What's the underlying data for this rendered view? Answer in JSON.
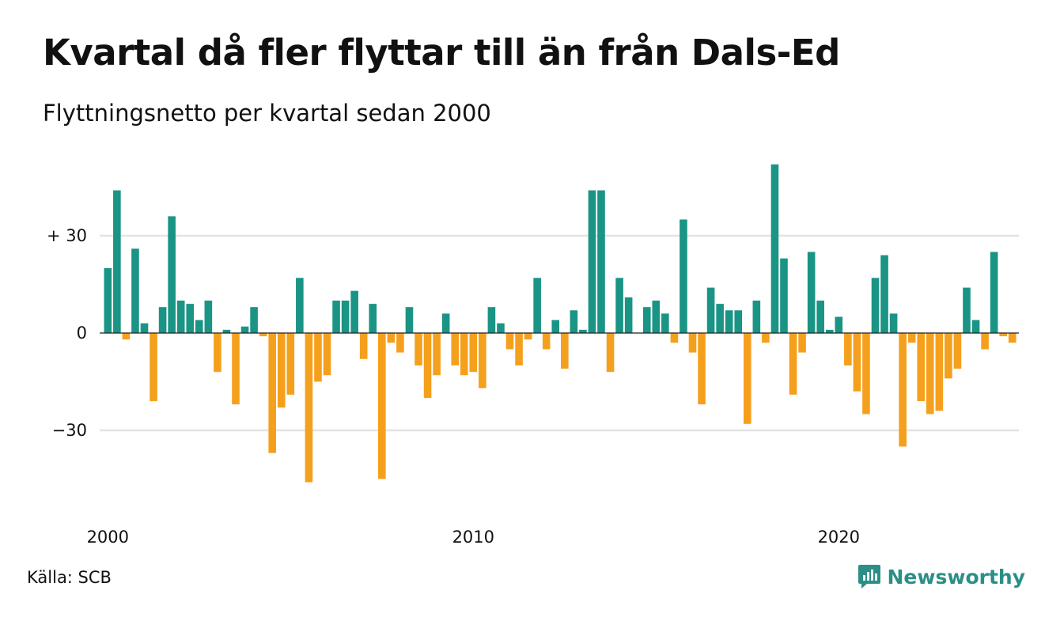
{
  "title": "Kvartal då fler flyttar till än från Dals-Ed",
  "subtitle": "Flyttningsnetto per kvartal sedan 2000",
  "source": "Källa: SCB",
  "brand": {
    "name": "Newsworthy",
    "logo_icon": "newsworthy-logo-icon"
  },
  "colors": {
    "positive": "#1a9485",
    "negative": "#f5a01d",
    "grid": "#e3e3e3",
    "zero_line": "#222222"
  },
  "chart_data": {
    "type": "bar",
    "title": "Kvartal då fler flyttar till än från Dals-Ed",
    "subtitle": "Flyttningsnetto per kvartal sedan 2000",
    "xlabel": "",
    "ylabel": "",
    "ylim": [
      -55,
      52
    ],
    "grid": true,
    "legend": "none",
    "y_ticks": [
      {
        "value": 30,
        "label": "+ 30"
      },
      {
        "value": 0,
        "label": "0"
      },
      {
        "value": -30,
        "label": "−30"
      }
    ],
    "x_ticks": [
      {
        "year": 2000,
        "label": "2000"
      },
      {
        "year": 2010,
        "label": "2010"
      },
      {
        "year": 2020,
        "label": "2020"
      }
    ],
    "start_year": 2000,
    "values": [
      20,
      44,
      -2,
      26,
      3,
      -21,
      8,
      36,
      10,
      9,
      4,
      10,
      -12,
      1,
      -22,
      2,
      8,
      -1,
      -37,
      -23,
      -19,
      17,
      -46,
      -15,
      -13,
      10,
      10,
      13,
      -8,
      9,
      -45,
      -3,
      -6,
      8,
      -10,
      -20,
      -13,
      6,
      -10,
      -13,
      -12,
      -17,
      8,
      3,
      -5,
      -10,
      -2,
      17,
      -5,
      4,
      -11,
      7,
      1,
      44,
      44,
      -12,
      17,
      11,
      0,
      8,
      10,
      6,
      -3,
      35,
      -6,
      -22,
      14,
      9,
      7,
      7,
      -28,
      10,
      -3,
      52,
      23,
      -19,
      -6,
      25,
      10,
      1,
      5,
      -10,
      -18,
      -25,
      17,
      24,
      6,
      -35,
      -3,
      -21,
      -25,
      -24,
      -14,
      -11,
      14,
      4,
      -5,
      25,
      -1,
      -3
    ]
  }
}
